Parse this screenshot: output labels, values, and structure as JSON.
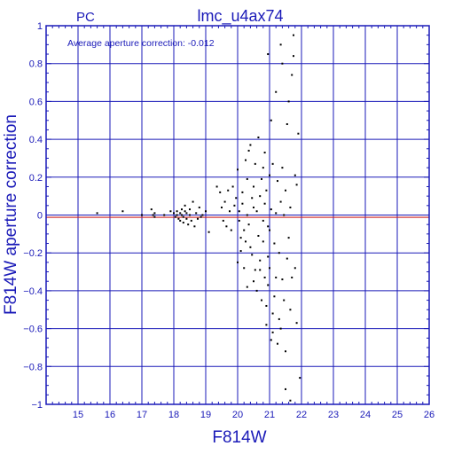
{
  "header": {
    "camera": "PC",
    "title": "lmc_u4ax74"
  },
  "annotation": "Average aperture correction: -0.012",
  "chart_data": {
    "type": "scatter",
    "title": "lmc_u4ax74",
    "xlabel": "F814W",
    "ylabel": "F814W aperture correction",
    "xlim": [
      14,
      26
    ],
    "ylim": [
      -1,
      1
    ],
    "xticks": [
      "15",
      "16",
      "17",
      "18",
      "19",
      "20",
      "21",
      "22",
      "23",
      "24",
      "25",
      "26"
    ],
    "yticks": [
      "−1",
      "−0.8",
      "−0.6",
      "−0.4",
      "−0.2",
      "0",
      "0.2",
      "0.4",
      "0.6",
      "0.8",
      "1"
    ],
    "grid": true,
    "mean_line": -0.012,
    "colors": {
      "axis": "#1a1ab8",
      "mean_line": "#cc2222",
      "points": "#000000"
    },
    "points": [
      [
        15.6,
        0.01
      ],
      [
        16.4,
        0.02
      ],
      [
        17.0,
        0.0
      ],
      [
        17.3,
        0.03
      ],
      [
        17.35,
        0.0
      ],
      [
        17.4,
        0.01
      ],
      [
        17.4,
        -0.01
      ],
      [
        17.7,
        0.0
      ],
      [
        17.9,
        0.02
      ],
      [
        18.0,
        0.01
      ],
      [
        18.05,
        -0.01
      ],
      [
        18.1,
        0.0
      ],
      [
        18.1,
        0.02
      ],
      [
        18.15,
        -0.02
      ],
      [
        18.2,
        0.01
      ],
      [
        18.2,
        -0.03
      ],
      [
        18.25,
        0.0
      ],
      [
        18.25,
        0.03
      ],
      [
        18.3,
        -0.01
      ],
      [
        18.3,
        -0.04
      ],
      [
        18.35,
        0.02
      ],
      [
        18.35,
        0.05
      ],
      [
        18.4,
        -0.02
      ],
      [
        18.4,
        0.01
      ],
      [
        18.45,
        -0.05
      ],
      [
        18.5,
        0.0
      ],
      [
        18.5,
        0.03
      ],
      [
        18.55,
        -0.03
      ],
      [
        18.6,
        0.07
      ],
      [
        18.65,
        -0.06
      ],
      [
        18.7,
        0.01
      ],
      [
        18.75,
        -0.02
      ],
      [
        18.8,
        0.04
      ],
      [
        18.85,
        -0.01
      ],
      [
        18.9,
        0.0
      ],
      [
        19.0,
        0.02
      ],
      [
        19.1,
        -0.09
      ],
      [
        19.35,
        0.15
      ],
      [
        19.45,
        0.12
      ],
      [
        19.5,
        0.04
      ],
      [
        19.55,
        -0.03
      ],
      [
        19.6,
        0.07
      ],
      [
        19.65,
        -0.06
      ],
      [
        19.7,
        0.13
      ],
      [
        19.75,
        0.02
      ],
      [
        19.8,
        -0.08
      ],
      [
        19.85,
        0.15
      ],
      [
        19.9,
        0.05
      ],
      [
        19.95,
        0.09
      ],
      [
        20.0,
        -0.25
      ],
      [
        20.0,
        0.24
      ],
      [
        20.05,
        -0.03
      ],
      [
        20.05,
        0.02
      ],
      [
        20.1,
        -0.12
      ],
      [
        20.1,
        -0.19
      ],
      [
        20.15,
        0.06
      ],
      [
        20.15,
        0.12
      ],
      [
        20.2,
        -0.08
      ],
      [
        20.2,
        -0.28
      ],
      [
        20.25,
        -0.14
      ],
      [
        20.25,
        0.29
      ],
      [
        20.3,
        -0.38
      ],
      [
        20.3,
        0.19
      ],
      [
        20.3,
        0.0
      ],
      [
        20.35,
        0.34
      ],
      [
        20.35,
        -0.05
      ],
      [
        20.4,
        -0.17
      ],
      [
        20.4,
        0.37
      ],
      [
        20.45,
        0.09
      ],
      [
        20.45,
        -0.21
      ],
      [
        20.5,
        0.15
      ],
      [
        20.5,
        -0.35
      ],
      [
        20.5,
        0.04
      ],
      [
        20.55,
        -0.29
      ],
      [
        20.55,
        0.27
      ],
      [
        20.6,
        0.02
      ],
      [
        20.6,
        -0.4
      ],
      [
        20.65,
        -0.11
      ],
      [
        20.65,
        0.41
      ],
      [
        20.7,
        -0.24
      ],
      [
        20.7,
        0.1
      ],
      [
        20.75,
        -0.45
      ],
      [
        20.75,
        0.19
      ],
      [
        20.8,
        -0.03
      ],
      [
        20.8,
        -0.14
      ],
      [
        20.8,
        0.25
      ],
      [
        20.85,
        -0.33
      ],
      [
        20.85,
        0.06
      ],
      [
        20.9,
        -0.58
      ],
      [
        20.9,
        -0.48
      ],
      [
        20.9,
        0.13
      ],
      [
        20.95,
        -0.22
      ],
      [
        20.95,
        -0.37
      ],
      [
        21.0,
        0.21
      ],
      [
        21.0,
        -0.08
      ],
      [
        21.0,
        -0.28
      ],
      [
        21.05,
        -0.66
      ],
      [
        21.05,
        0.03
      ],
      [
        21.1,
        -0.52
      ],
      [
        21.1,
        0.27
      ],
      [
        21.15,
        -0.43
      ],
      [
        21.15,
        -0.15
      ],
      [
        21.2,
        0.01
      ],
      [
        21.2,
        -0.33
      ],
      [
        21.25,
        -0.68
      ],
      [
        21.25,
        0.18
      ],
      [
        21.3,
        -0.55
      ],
      [
        21.3,
        -0.2
      ],
      [
        21.35,
        0.07
      ],
      [
        21.35,
        -0.6
      ],
      [
        21.4,
        -0.34
      ],
      [
        21.4,
        0.25
      ],
      [
        21.45,
        0.0
      ],
      [
        21.45,
        -0.45
      ],
      [
        21.5,
        -0.72
      ],
      [
        21.5,
        0.13
      ],
      [
        21.55,
        -0.23
      ],
      [
        21.55,
        0.48
      ],
      [
        21.6,
        0.6
      ],
      [
        21.6,
        -0.12
      ],
      [
        21.65,
        0.04
      ],
      [
        21.65,
        -0.5
      ],
      [
        21.7,
        0.74
      ],
      [
        21.7,
        -0.33
      ],
      [
        21.75,
        0.95
      ],
      [
        21.75,
        0.84
      ],
      [
        21.8,
        -0.28
      ],
      [
        21.8,
        0.21
      ],
      [
        21.85,
        -0.57
      ],
      [
        21.9,
        0.43
      ],
      [
        21.95,
        -0.86
      ],
      [
        21.4,
        0.8
      ],
      [
        21.2,
        0.65
      ],
      [
        21.35,
        0.9
      ],
      [
        20.95,
        0.85
      ],
      [
        21.05,
        0.5
      ],
      [
        21.1,
        -0.62
      ],
      [
        21.5,
        -0.92
      ],
      [
        21.65,
        -0.98
      ],
      [
        21.85,
        0.16
      ],
      [
        20.85,
        0.33
      ],
      [
        20.7,
        -0.29
      ],
      [
        20.95,
        -0.06
      ]
    ]
  }
}
